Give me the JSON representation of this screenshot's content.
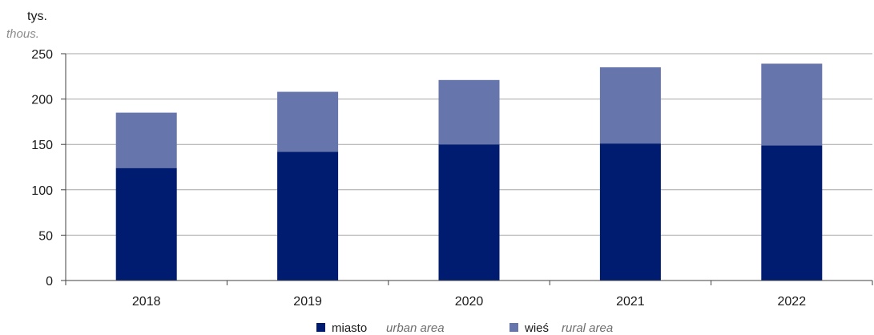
{
  "colors": {
    "urban": "#001c71",
    "rural": "#6675ab",
    "grid": "#a6a6a6",
    "axis": "#404040"
  },
  "chart_data": {
    "type": "bar",
    "stacked": true,
    "unit_label": "tys.",
    "unit_label_en": "thous.",
    "categories": [
      "2018",
      "2019",
      "2020",
      "2021",
      "2022"
    ],
    "series": [
      {
        "name": "miasto",
        "name_en": "urban area",
        "values": [
          124,
          142,
          150,
          151,
          149
        ]
      },
      {
        "name": "wieś",
        "name_en": "rural area",
        "values": [
          61,
          66,
          71,
          84,
          90
        ]
      }
    ],
    "ylim": [
      0,
      250
    ],
    "yticks": [
      "0",
      "50",
      "100",
      "150",
      "200",
      "250"
    ],
    "grid": true,
    "legend_position": "bottom-center"
  }
}
